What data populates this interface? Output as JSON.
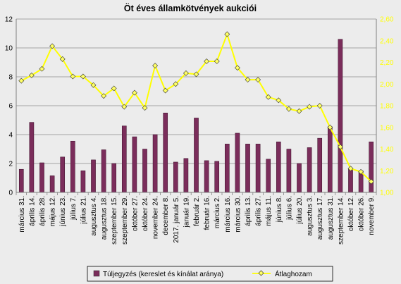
{
  "chart_data": {
    "type": "bar",
    "title": "Öt éves államkötvények aukciói",
    "categories": [
      "március 31.",
      "április 14.",
      "április 28.",
      "május 12.",
      "június 23.",
      "július 7.",
      "július 21.",
      "augusztus 4.",
      "augusztus 18.",
      "szeptember 15.",
      "szeptember 29.",
      "október 27.",
      "október 24.",
      "november 24.",
      "december 8.",
      "2017. január 5.",
      "január 19.",
      "február 2.",
      "február 16.",
      "március 2.",
      "március 16.",
      "március 30.",
      "április 13.",
      "április 27.",
      "május 11.",
      "június 8.",
      "július 6.",
      "július 20.",
      "augusztus 3.",
      "augusztus 17.",
      "augusztus 31.",
      "szeptember 14.",
      "október 12.",
      "október 26.",
      "november 9."
    ],
    "series": [
      {
        "name": "Túljegyzés (kereslet és kínálat aránya)",
        "axis": "left",
        "kind": "bar",
        "color": "#7b2d5b",
        "values": [
          1.6,
          4.85,
          2.05,
          1.15,
          2.45,
          3.55,
          1.5,
          2.25,
          2.95,
          2.0,
          4.6,
          3.85,
          3.0,
          4.0,
          5.5,
          2.1,
          2.35,
          5.15,
          2.2,
          2.15,
          3.35,
          4.1,
          3.35,
          3.35,
          2.3,
          3.5,
          3.0,
          2.0,
          3.1,
          3.75,
          4.55,
          10.6,
          1.6,
          1.5,
          3.5
        ]
      },
      {
        "name": "Átlaghozam",
        "axis": "right",
        "kind": "line",
        "color": "#ffff00",
        "marker_fill": "#ffff66",
        "values": [
          2.03,
          2.08,
          2.14,
          2.35,
          2.23,
          2.07,
          2.07,
          1.99,
          1.89,
          1.96,
          1.79,
          1.92,
          1.78,
          2.17,
          1.94,
          2.0,
          2.1,
          2.09,
          2.21,
          2.21,
          2.46,
          2.15,
          2.04,
          2.04,
          1.88,
          1.85,
          1.77,
          1.75,
          1.79,
          1.8,
          1.6,
          1.42,
          1.22,
          1.19,
          1.1
        ]
      }
    ],
    "y_left": {
      "min": 0,
      "max": 12,
      "step": 2,
      "ticks": [
        "0",
        "2",
        "4",
        "6",
        "8",
        "10",
        "12"
      ]
    },
    "y_right": {
      "min": 1.0,
      "max": 2.6,
      "step": 0.2,
      "ticks": [
        "1,00",
        "1,20",
        "1,40",
        "1,60",
        "1,80",
        "2,00",
        "2,20",
        "2,40",
        "2,60"
      ]
    },
    "grid": "horizontal",
    "legend_position": "bottom"
  },
  "colors": {
    "background": "#ececec",
    "plot_background": "#ececec",
    "gridline": "#8c8c8c",
    "axis_line": "#808080",
    "bar": "#7b2d5b",
    "line": "#ffff00",
    "right_tick_text": "#ffff00"
  }
}
